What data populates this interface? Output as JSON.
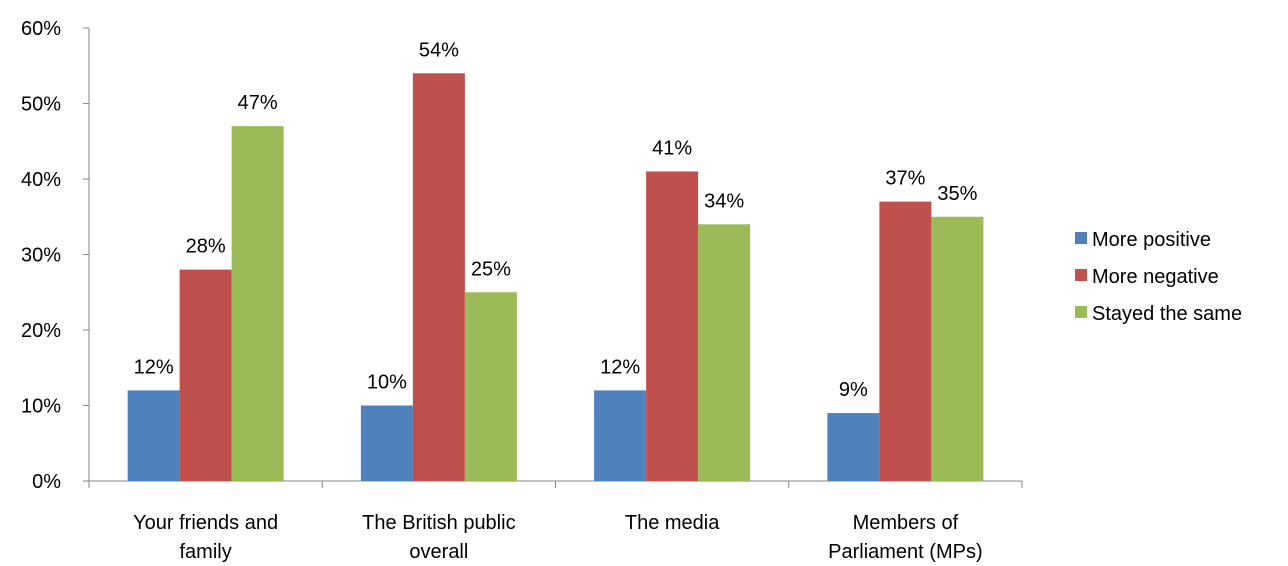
{
  "chart_data": {
    "type": "bar",
    "categories": [
      [
        "Your friends and",
        "family"
      ],
      [
        "The British public",
        "overall"
      ],
      [
        "The media"
      ],
      [
        "Members of",
        "Parliament (MPs)"
      ]
    ],
    "series": [
      {
        "name": "More positive",
        "values": [
          12,
          10,
          12,
          9
        ]
      },
      {
        "name": "More negative",
        "values": [
          28,
          54,
          41,
          37
        ]
      },
      {
        "name": "Stayed the same",
        "values": [
          47,
          25,
          34,
          35
        ]
      }
    ],
    "colors": [
      "#4F81BD",
      "#C0504D",
      "#9BBB59"
    ],
    "ylim": [
      0,
      60
    ],
    "yticks": [
      0,
      10,
      20,
      30,
      40,
      50,
      60
    ],
    "tick_suffix": "%",
    "data_label_suffix": "%",
    "grid": false,
    "legend_position": "right"
  }
}
